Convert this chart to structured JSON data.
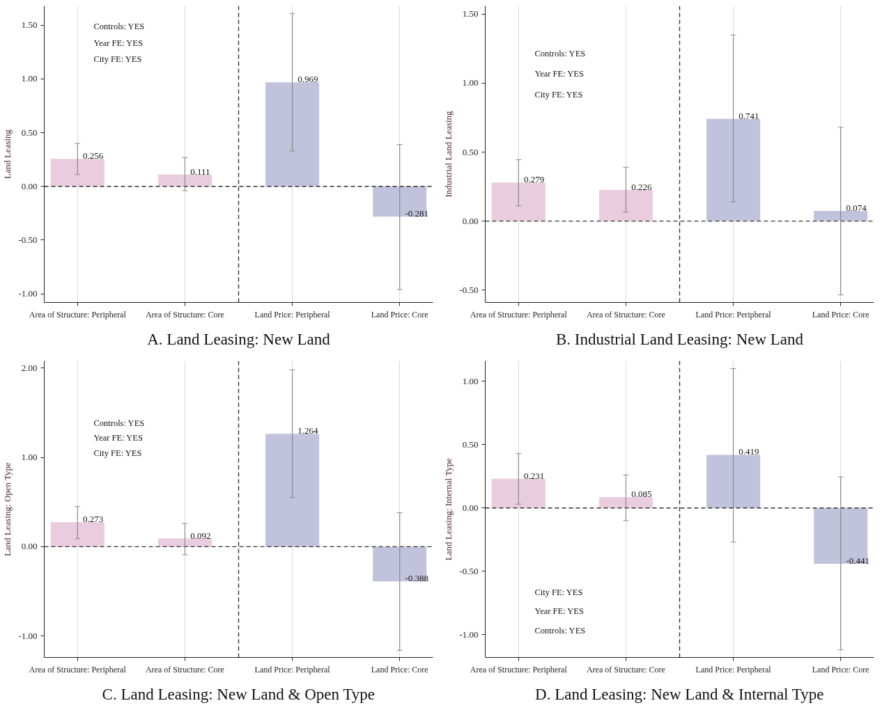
{
  "chart_data": [
    {
      "type": "bar",
      "title": "A. Land Leasing: New Land",
      "ylabel": "Land Leasing",
      "categories": [
        "Area of Structure: Peripheral",
        "Area of Structure: Core",
        "Land Price: Peripheral",
        "Land Price: Core"
      ],
      "values": [
        0.256,
        0.111,
        0.969,
        -0.281
      ],
      "colors": [
        "#e9c9dd",
        "#e9c9dd",
        "#bec0db",
        "#bec0db"
      ],
      "errors": [
        [
          0.11,
          0.4
        ],
        [
          -0.04,
          0.27
        ],
        [
          0.33,
          1.61
        ],
        [
          -0.96,
          0.39
        ]
      ],
      "ylim": [
        -1.08,
        1.68
      ],
      "yticks": [
        {
          "value": -1,
          "label": "-1.00"
        },
        {
          "value": -0.5,
          "label": "-0.50"
        },
        {
          "value": 0,
          "label": "0.00"
        },
        {
          "value": 0.5,
          "label": "0.50"
        },
        {
          "value": 1,
          "label": "1.00"
        },
        {
          "value": 1.5,
          "label": "1.50"
        }
      ],
      "ref_lines": [
        {
          "axis": "y",
          "value": 0,
          "line_style": "dashed",
          "color": "#333333"
        }
      ],
      "annotations": [
        "Controls: YES",
        "Year FE: YES",
        "City FE: YES"
      ],
      "data_labels": true,
      "grid": "x"
    },
    {
      "type": "bar",
      "title": "B. Industrial Land Leasing: New Land",
      "ylabel": "Industrial Land Leasing",
      "categories": [
        "Area of Structure: Peripheral",
        "Area of Structure: Core",
        "Land Price: Peripheral",
        "Land Price: Core"
      ],
      "values": [
        0.279,
        0.226,
        0.741,
        0.074
      ],
      "colors": [
        "#e9c9dd",
        "#e9c9dd",
        "#bec0db",
        "#bec0db"
      ],
      "errors": [
        [
          0.11,
          0.445
        ],
        [
          0.065,
          0.39
        ],
        [
          0.14,
          1.35
        ],
        [
          -0.535,
          0.68
        ]
      ],
      "ylim": [
        -0.59,
        1.56
      ],
      "yticks": [
        {
          "value": -0.5,
          "label": "-0.50"
        },
        {
          "value": 0,
          "label": "0.00"
        },
        {
          "value": 0.5,
          "label": "0.50"
        },
        {
          "value": 1,
          "label": "1.00"
        },
        {
          "value": 1.5,
          "label": "1.50"
        }
      ],
      "ref_lines": [
        {
          "axis": "y",
          "value": 0,
          "line_style": "dashed",
          "color": "#333333"
        }
      ],
      "annotations": [
        "Controls: YES",
        "Year FE: YES",
        "City FE: YES"
      ],
      "data_labels": true,
      "grid": "x"
    },
    {
      "type": "bar",
      "title": "C. Land Leasing: New Land & Open Type",
      "ylabel": "Land Leasing: Open Type",
      "categories": [
        "Area of Structure: Peripheral",
        "Area of Structure: Core",
        "Land Price: Peripheral",
        "Land Price: Core"
      ],
      "values": [
        0.273,
        0.092,
        1.264,
        -0.388
      ],
      "colors": [
        "#e9c9dd",
        "#e9c9dd",
        "#bec0db",
        "#bec0db"
      ],
      "errors": [
        [
          0.09,
          0.45
        ],
        [
          -0.09,
          0.26
        ],
        [
          0.55,
          1.98
        ],
        [
          -1.16,
          0.38
        ]
      ],
      "ylim": [
        -1.24,
        2.08
      ],
      "yticks": [
        {
          "value": -1,
          "label": "-1.00"
        },
        {
          "value": 0,
          "label": "0.00"
        },
        {
          "value": 1,
          "label": "1.00"
        },
        {
          "value": 2,
          "label": "2.00"
        }
      ],
      "ref_lines": [
        {
          "axis": "y",
          "value": 0,
          "line_style": "dashed",
          "color": "#333333"
        }
      ],
      "annotations": [
        "Controls: YES",
        "Year FE: YES",
        "City FE: YES"
      ],
      "data_labels": true,
      "grid": "x"
    },
    {
      "type": "bar",
      "title": "D. Land Leasing: New Land & Internal Type",
      "ylabel": "Land Leasing: Internal Type",
      "categories": [
        "Area of Structure: Peripheral",
        "Area of Structure: Core",
        "Land Price: Peripheral",
        "Land Price: Core"
      ],
      "values": [
        0.231,
        0.085,
        0.419,
        -0.441
      ],
      "colors": [
        "#e9c9dd",
        "#e9c9dd",
        "#bec0db",
        "#bec0db"
      ],
      "errors": [
        [
          0.03,
          0.43
        ],
        [
          -0.1,
          0.26
        ],
        [
          -0.27,
          1.1
        ],
        [
          -1.12,
          0.245
        ]
      ],
      "ylim": [
        -1.18,
        1.16
      ],
      "yticks": [
        {
          "value": -1,
          "label": "-1.00"
        },
        {
          "value": -0.5,
          "label": "-0.50"
        },
        {
          "value": 0,
          "label": "0.00"
        },
        {
          "value": 0.5,
          "label": "0.50"
        },
        {
          "value": 1,
          "label": "1.00"
        }
      ],
      "ref_lines": [
        {
          "axis": "y",
          "value": 0,
          "line_style": "dashed",
          "color": "#333333"
        }
      ],
      "annotations": [
        "City FE: YES",
        "Year FE: YES",
        "Controls: YES"
      ],
      "data_labels": true,
      "grid": "x"
    }
  ]
}
